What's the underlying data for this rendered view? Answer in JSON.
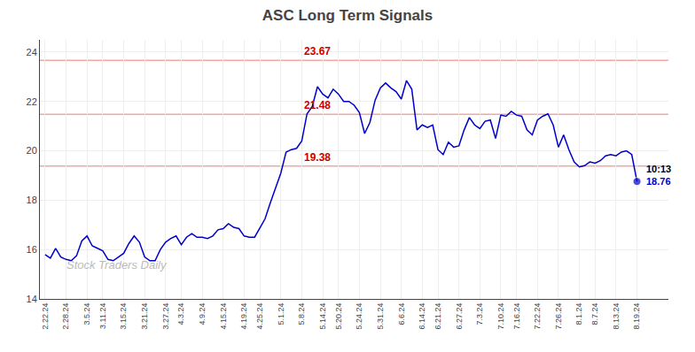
{
  "chart_data": {
    "type": "line",
    "title": "ASC Long Term Signals",
    "categories": [
      "2.22.24",
      null,
      null,
      null,
      "2.28.24",
      null,
      null,
      null,
      "3.5.24",
      null,
      null,
      "3.11.24",
      null,
      null,
      null,
      "3.15.24",
      null,
      null,
      null,
      "3.21.24",
      null,
      null,
      null,
      "3.27.24",
      null,
      null,
      "4.3.24",
      null,
      null,
      null,
      "4.9.24",
      null,
      null,
      null,
      "4.15.24",
      null,
      null,
      null,
      "4.19.24",
      null,
      null,
      "4.25.24",
      null,
      null,
      null,
      "5.1.24",
      null,
      null,
      null,
      "5.8.24",
      null,
      null,
      null,
      "5.14.24",
      null,
      null,
      "5.20.24",
      null,
      null,
      null,
      "5.24.24",
      null,
      null,
      null,
      "5.31.24",
      null,
      null,
      null,
      "6.6.24",
      null,
      null,
      null,
      "6.14.24",
      null,
      null,
      "6.21.24",
      null,
      null,
      null,
      "6.27.24",
      null,
      null,
      null,
      "7.3.24",
      null,
      null,
      null,
      "7.10.24",
      null,
      null,
      "7.16.24",
      null,
      null,
      null,
      "7.22.24",
      null,
      null,
      null,
      "7.26.24",
      null,
      null,
      null,
      "8.1.24",
      null,
      null,
      "8.7.24",
      null,
      null,
      null,
      "8.13.24",
      null,
      null,
      null,
      "8.19.24"
    ],
    "series": [
      {
        "color": "#0000cc",
        "marker": "end_dot",
        "values": [
          15.8,
          15.65,
          16.05,
          15.7,
          15.6,
          15.55,
          15.75,
          16.35,
          16.55,
          16.15,
          16.05,
          15.95,
          15.6,
          15.55,
          15.7,
          15.85,
          16.25,
          16.55,
          16.3,
          15.7,
          15.55,
          15.55,
          16.0,
          16.3,
          16.45,
          16.55,
          16.2,
          16.5,
          16.65,
          16.5,
          16.5,
          16.45,
          16.55,
          16.8,
          16.85,
          17.05,
          16.9,
          16.85,
          16.55,
          16.5,
          16.5,
          16.85,
          17.25,
          17.9,
          18.5,
          19.1,
          19.95,
          20.05,
          20.1,
          20.4,
          21.5,
          21.8,
          22.6,
          22.3,
          22.15,
          22.5,
          22.3,
          22.0,
          22.0,
          21.85,
          21.55,
          20.7,
          21.15,
          22.05,
          22.55,
          22.75,
          22.55,
          22.4,
          22.1,
          22.85,
          22.5,
          20.85,
          21.05,
          20.95,
          21.05,
          20.05,
          19.85,
          20.35,
          20.15,
          20.2,
          20.85,
          21.35,
          21.05,
          20.9,
          21.2,
          21.25,
          20.5,
          21.45,
          21.4,
          21.6,
          21.45,
          21.4,
          20.85,
          20.65,
          21.25,
          21.4,
          21.5,
          21.05,
          20.15,
          20.65,
          20.05,
          19.55,
          19.35,
          19.4,
          19.55,
          19.5,
          19.6,
          19.8,
          19.85,
          19.8,
          19.95,
          20.0,
          19.85,
          18.76
        ]
      }
    ],
    "hlines": [
      {
        "y": 23.67,
        "color": "#f08080",
        "label": "23.67",
        "label_color": "#cc0000"
      },
      {
        "y": 21.48,
        "color": "#f08080",
        "label": "21.48",
        "label_color": "#cc0000"
      },
      {
        "y": 19.38,
        "color": "#f08080",
        "label": "19.38",
        "label_color": "#cc0000"
      }
    ],
    "annotations": [
      {
        "text": "10:13",
        "x": "8.19.24",
        "y": 18.76,
        "color": "#000000"
      },
      {
        "text": "18.76",
        "x": "8.19.24",
        "y": 18.76,
        "color": "#0000cc"
      }
    ],
    "watermark": {
      "text": "Stock Traders Daily",
      "color": "#bbbbbb"
    },
    "ylim": [
      14,
      24.5
    ],
    "yticks": [
      14,
      16,
      18,
      20,
      22,
      24
    ],
    "grid": true
  }
}
